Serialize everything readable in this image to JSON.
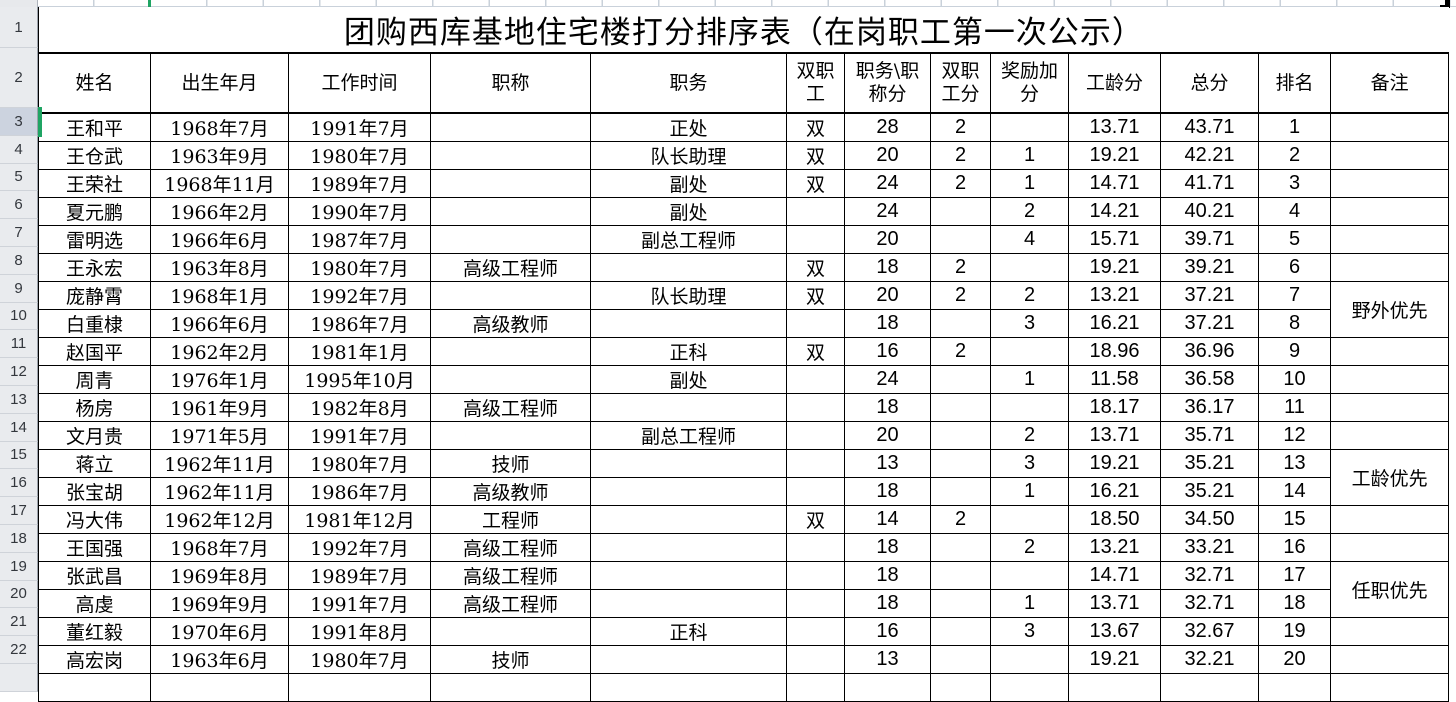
{
  "sheet": {
    "title": "团购西库基地住宅楼打分排序表（在岗职工第一次公示）",
    "selected_row_number": "3",
    "row_numbers": [
      "1",
      "2",
      "3",
      "4",
      "5",
      "6",
      "7",
      "8",
      "9",
      "10",
      "11",
      "12",
      "13",
      "14",
      "15",
      "16",
      "17",
      "18",
      "19",
      "20",
      "21",
      "22"
    ],
    "columns": [
      {
        "key": "name",
        "label": "姓名"
      },
      {
        "key": "birth",
        "label": "出生年月"
      },
      {
        "key": "work_start",
        "label": "工作时间"
      },
      {
        "key": "prof_title",
        "label": "职称"
      },
      {
        "key": "position",
        "label": "职务"
      },
      {
        "key": "dual",
        "label": "双职工"
      },
      {
        "key": "pos_title_score",
        "label": "职务\\职称分"
      },
      {
        "key": "dual_score",
        "label": "双职工分"
      },
      {
        "key": "bonus",
        "label": "奖励加分"
      },
      {
        "key": "seniority",
        "label": "工龄分"
      },
      {
        "key": "total",
        "label": "总分"
      },
      {
        "key": "rank",
        "label": "排名"
      },
      {
        "key": "note",
        "label": "备注"
      }
    ],
    "rows": [
      {
        "name": "王和平",
        "birth": "1968年7月",
        "work_start": "1991年7月",
        "prof_title": "",
        "position": "正处",
        "dual": "双",
        "pos_title_score": "28",
        "dual_score": "2",
        "bonus": "",
        "seniority": "13.71",
        "total": "43.71",
        "rank": "1",
        "note": ""
      },
      {
        "name": "王仓武",
        "birth": "1963年9月",
        "work_start": "1980年7月",
        "prof_title": "",
        "position": "队长助理",
        "dual": "双",
        "pos_title_score": "20",
        "dual_score": "2",
        "bonus": "1",
        "seniority": "19.21",
        "total": "42.21",
        "rank": "2",
        "note": ""
      },
      {
        "name": "王荣社",
        "birth": "1968年11月",
        "work_start": "1989年7月",
        "prof_title": "",
        "position": "副处",
        "dual": "双",
        "pos_title_score": "24",
        "dual_score": "2",
        "bonus": "1",
        "seniority": "14.71",
        "total": "41.71",
        "rank": "3",
        "note": ""
      },
      {
        "name": "夏元鹏",
        "birth": "1966年2月",
        "work_start": "1990年7月",
        "prof_title": "",
        "position": "副处",
        "dual": "",
        "pos_title_score": "24",
        "dual_score": "",
        "bonus": "2",
        "seniority": "14.21",
        "total": "40.21",
        "rank": "4",
        "note": ""
      },
      {
        "name": "雷明选",
        "birth": "1966年6月",
        "work_start": "1987年7月",
        "prof_title": "",
        "position": "副总工程师",
        "dual": "",
        "pos_title_score": "20",
        "dual_score": "",
        "bonus": "4",
        "seniority": "15.71",
        "total": "39.71",
        "rank": "5",
        "note": ""
      },
      {
        "name": "王永宏",
        "birth": "1963年8月",
        "work_start": "1980年7月",
        "prof_title": "高级工程师",
        "position": "",
        "dual": "双",
        "pos_title_score": "18",
        "dual_score": "2",
        "bonus": "",
        "seniority": "19.21",
        "total": "39.21",
        "rank": "6",
        "note": ""
      },
      {
        "name": "庞静霄",
        "birth": "1968年1月",
        "work_start": "1992年7月",
        "prof_title": "",
        "position": "队长助理",
        "dual": "双",
        "pos_title_score": "20",
        "dual_score": "2",
        "bonus": "2",
        "seniority": "13.21",
        "total": "37.21",
        "rank": "7",
        "note": "野外优先",
        "note_span": 2
      },
      {
        "name": "白重棣",
        "birth": "1966年6月",
        "work_start": "1986年7月",
        "prof_title": "高级教师",
        "position": "",
        "dual": "",
        "pos_title_score": "18",
        "dual_score": "",
        "bonus": "3",
        "seniority": "16.21",
        "total": "37.21",
        "rank": "8",
        "note_skip": true
      },
      {
        "name": "赵国平",
        "birth": "1962年2月",
        "work_start": "1981年1月",
        "prof_title": "",
        "position": "正科",
        "dual": "双",
        "pos_title_score": "16",
        "dual_score": "2",
        "bonus": "",
        "seniority": "18.96",
        "total": "36.96",
        "rank": "9",
        "note": ""
      },
      {
        "name": "周青",
        "birth": "1976年1月",
        "work_start": "1995年10月",
        "prof_title": "",
        "position": "副处",
        "dual": "",
        "pos_title_score": "24",
        "dual_score": "",
        "bonus": "1",
        "seniority": "11.58",
        "total": "36.58",
        "rank": "10",
        "note": ""
      },
      {
        "name": "杨房",
        "birth": "1961年9月",
        "work_start": "1982年8月",
        "prof_title": "高级工程师",
        "position": "",
        "dual": "",
        "pos_title_score": "18",
        "dual_score": "",
        "bonus": "",
        "seniority": "18.17",
        "total": "36.17",
        "rank": "11",
        "note": ""
      },
      {
        "name": "文月贵",
        "birth": "1971年5月",
        "work_start": "1991年7月",
        "prof_title": "",
        "position": "副总工程师",
        "dual": "",
        "pos_title_score": "20",
        "dual_score": "",
        "bonus": "2",
        "seniority": "13.71",
        "total": "35.71",
        "rank": "12",
        "note": ""
      },
      {
        "name": "蒋立",
        "birth": "1962年11月",
        "work_start": "1980年7月",
        "prof_title": "技师",
        "position": "",
        "dual": "",
        "pos_title_score": "13",
        "dual_score": "",
        "bonus": "3",
        "seniority": "19.21",
        "total": "35.21",
        "rank": "13",
        "note": "工龄优先",
        "note_span": 2
      },
      {
        "name": "张宝胡",
        "birth": "1962年11月",
        "work_start": "1986年7月",
        "prof_title": "高级教师",
        "position": "",
        "dual": "",
        "pos_title_score": "18",
        "dual_score": "",
        "bonus": "1",
        "seniority": "16.21",
        "total": "35.21",
        "rank": "14",
        "note_skip": true
      },
      {
        "name": "冯大伟",
        "birth": "1962年12月",
        "work_start": "1981年12月",
        "prof_title": "工程师",
        "position": "",
        "dual": "双",
        "pos_title_score": "14",
        "dual_score": "2",
        "bonus": "",
        "seniority": "18.50",
        "total": "34.50",
        "rank": "15",
        "note": ""
      },
      {
        "name": "王国强",
        "birth": "1968年7月",
        "work_start": "1992年7月",
        "prof_title": "高级工程师",
        "position": "",
        "dual": "",
        "pos_title_score": "18",
        "dual_score": "",
        "bonus": "2",
        "seniority": "13.21",
        "total": "33.21",
        "rank": "16",
        "note": ""
      },
      {
        "name": "张武昌",
        "birth": "1969年8月",
        "work_start": "1989年7月",
        "prof_title": "高级工程师",
        "position": "",
        "dual": "",
        "pos_title_score": "18",
        "dual_score": "",
        "bonus": "",
        "seniority": "14.71",
        "total": "32.71",
        "rank": "17",
        "note": "任职优先",
        "note_span": 2
      },
      {
        "name": "高虔",
        "birth": "1969年9月",
        "work_start": "1991年7月",
        "prof_title": "高级工程师",
        "position": "",
        "dual": "",
        "pos_title_score": "18",
        "dual_score": "",
        "bonus": "1",
        "seniority": "13.71",
        "total": "32.71",
        "rank": "18",
        "note_skip": true
      },
      {
        "name": "董红毅",
        "birth": "1970年6月",
        "work_start": "1991年8月",
        "prof_title": "",
        "position": "正科",
        "dual": "",
        "pos_title_score": "16",
        "dual_score": "",
        "bonus": "3",
        "seniority": "13.67",
        "total": "32.67",
        "rank": "19",
        "note": ""
      },
      {
        "name": "高宏岗",
        "birth": "1963年6月",
        "work_start": "1980年7月",
        "prof_title": "技师",
        "position": "",
        "dual": "",
        "pos_title_score": "13",
        "dual_score": "",
        "bonus": "",
        "seniority": "19.21",
        "total": "32.21",
        "rank": "20",
        "note": ""
      }
    ],
    "colors": {
      "selection_green": "#1fa463",
      "border_black": "#000000",
      "gutter_gray": "#e9ebee"
    }
  }
}
